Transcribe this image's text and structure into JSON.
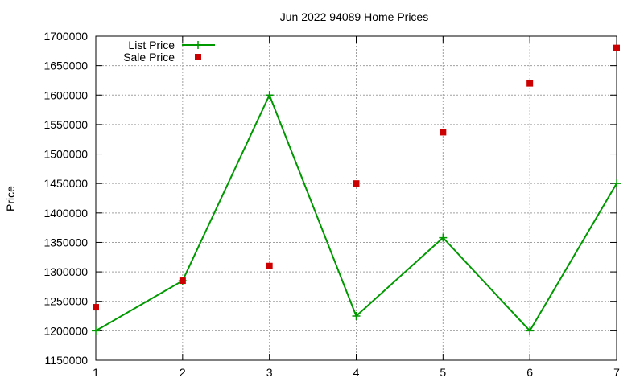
{
  "chart_data": {
    "type": "line",
    "title": "Jun 2022 94089 Home Prices",
    "xlabel": "",
    "ylabel": "Price",
    "xlim": [
      1,
      7
    ],
    "ylim": [
      1150000,
      1700000
    ],
    "x_ticks": [
      1,
      2,
      3,
      4,
      5,
      6,
      7
    ],
    "y_ticks": [
      1150000,
      1200000,
      1250000,
      1300000,
      1350000,
      1400000,
      1450000,
      1500000,
      1550000,
      1600000,
      1650000,
      1700000
    ],
    "grid": true,
    "legend_position": "top-left",
    "series": [
      {
        "name": "List Price",
        "style": "line-with-plus-markers",
        "color": "#009900",
        "x": [
          1,
          2,
          3,
          4,
          5,
          6,
          7
        ],
        "values": [
          1200000,
          1285000,
          1600000,
          1225000,
          1358000,
          1200000,
          1450000
        ]
      },
      {
        "name": "Sale Price",
        "style": "square-markers",
        "color": "#cc0000",
        "x": [
          1,
          2,
          3,
          4,
          5,
          6,
          7
        ],
        "values": [
          1240000,
          1285000,
          1310000,
          1450000,
          1537000,
          1620000,
          1680000
        ]
      }
    ]
  }
}
